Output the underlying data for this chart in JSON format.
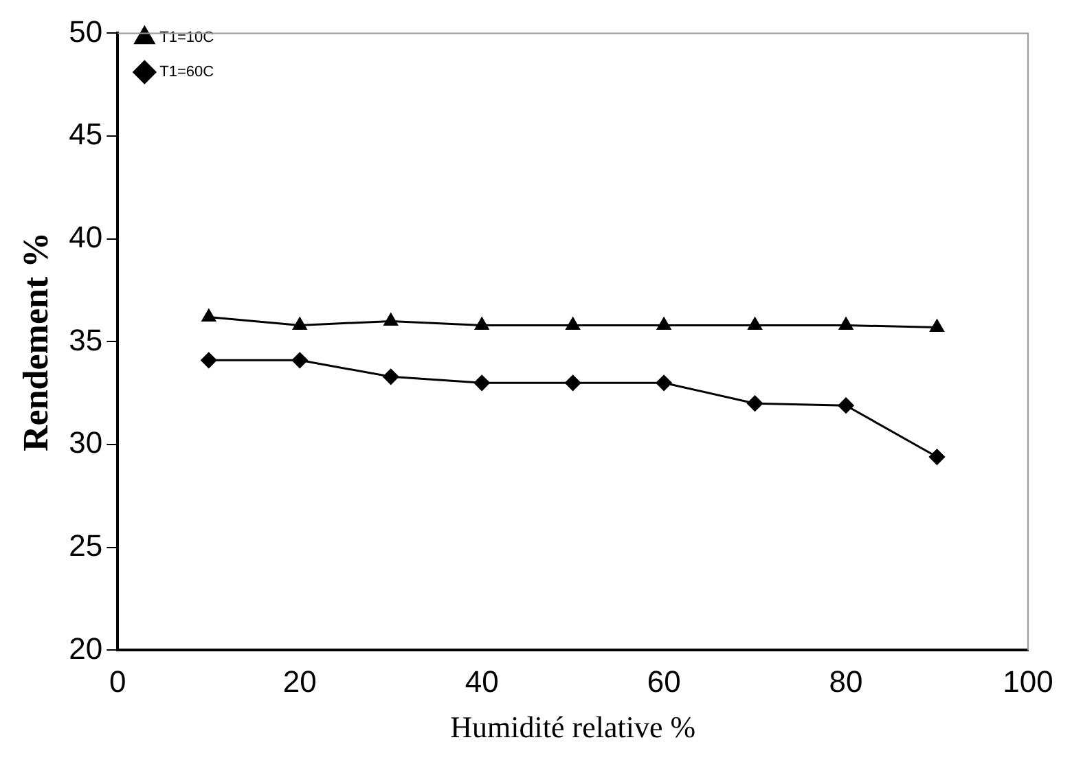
{
  "chart_data": {
    "type": "line",
    "xlabel": "Humidité relative %",
    "ylabel": "Rendement %",
    "xlim": [
      0,
      100
    ],
    "xticks": [
      0,
      20,
      40,
      60,
      80,
      100
    ],
    "ylim": [
      20,
      50
    ],
    "yticks": [
      20,
      25,
      30,
      35,
      40,
      45,
      50
    ],
    "grid": false,
    "legend": "top left",
    "series": [
      {
        "name": "T1=10C",
        "color": "#000000",
        "marker": "triangle",
        "x": [
          10,
          20,
          30,
          40,
          50,
          60,
          70,
          80,
          90
        ],
        "values": [
          36.2,
          35.8,
          36.0,
          35.8,
          35.8,
          35.8,
          35.8,
          35.8,
          35.7
        ]
      },
      {
        "name": "T1=60C",
        "color": "#000000",
        "marker": "diamond",
        "x": [
          10,
          20,
          30,
          40,
          50,
          60,
          70,
          80,
          90
        ],
        "values": [
          34.1,
          34.1,
          33.3,
          33.0,
          33.0,
          33.0,
          32.0,
          31.9,
          29.4
        ]
      }
    ]
  }
}
